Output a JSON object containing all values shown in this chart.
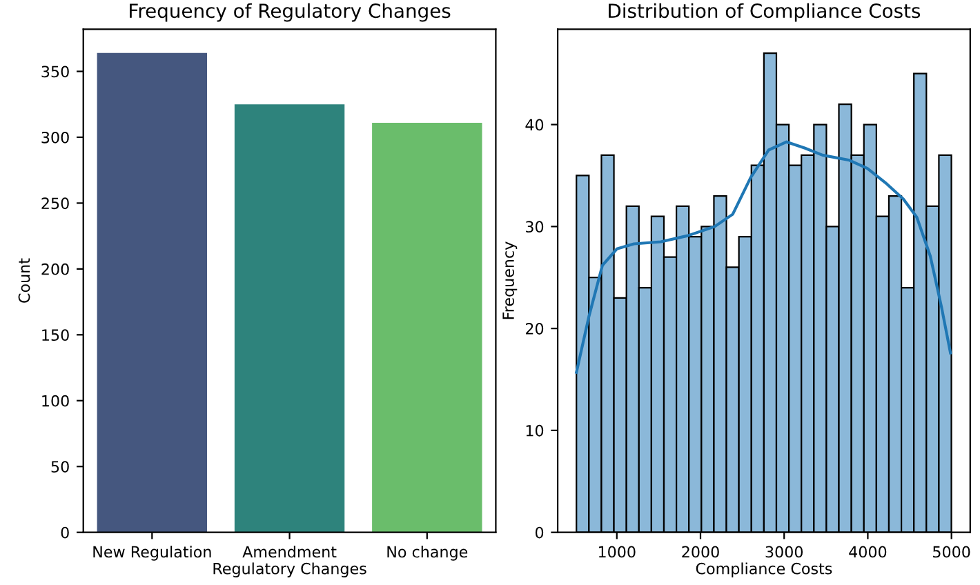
{
  "chart_data": [
    {
      "type": "bar",
      "title": "Frequency of Regulatory Changes",
      "xlabel": "Regulatory Changes",
      "ylabel": "Count",
      "categories": [
        "New Regulation",
        "Amendment",
        "No change"
      ],
      "values": [
        364,
        325,
        311
      ],
      "colors": [
        "#45577f",
        "#2e837c",
        "#6abd6b"
      ],
      "ylim": [
        0,
        382
      ],
      "yticks": [
        0,
        50,
        100,
        150,
        200,
        250,
        300,
        350
      ]
    },
    {
      "type": "histogram",
      "title": "Distribution of Compliance Costs",
      "xlabel": "Compliance Costs",
      "ylabel": "Frequency",
      "bins": [
        517,
        666.4,
        815.8,
        965.2,
        1114.6,
        1264,
        1413.4,
        1562.8,
        1712.2,
        1861.6,
        2011,
        2160.4,
        2309.8,
        2459.2,
        2608.6,
        2758,
        2907.4,
        3056.8,
        3206.2,
        3355.6,
        3505,
        3654.4,
        3803.8,
        3953.2,
        4102.6,
        4252,
        4401.4,
        4550.8,
        4700.2,
        4849.6,
        4999
      ],
      "series": [
        {
          "type": "histogram",
          "color": "#8bb8d9",
          "values": [
            35,
            25,
            37,
            23,
            32,
            24,
            31,
            27,
            32,
            29,
            30,
            33,
            26,
            29,
            36,
            47,
            40,
            36,
            37,
            40,
            30,
            42,
            37,
            40,
            31,
            33,
            24,
            45,
            32,
            37
          ]
        },
        {
          "type": "line",
          "color": "#1f77b4",
          "x": [
            517,
            667,
            828,
            1000,
            1204,
            1526,
            1848,
            2170,
            2385,
            2600,
            2814,
            3029,
            3244,
            3459,
            3781,
            3995,
            4210,
            4425,
            4586,
            4747,
            4881,
            4988
          ],
          "values": [
            15.7,
            21.2,
            26.2,
            27.8,
            28.3,
            28.5,
            29.1,
            30.0,
            31.2,
            34.8,
            37.5,
            38.3,
            37.7,
            37.0,
            36.5,
            35.7,
            34.3,
            32.7,
            30.9,
            27.1,
            22.1,
            17.6
          ]
        }
      ],
      "xlim": [
        293,
        5224
      ],
      "xticks": [
        1000,
        2000,
        3000,
        4000,
        5000
      ],
      "ylim": [
        0,
        49.35
      ],
      "yticks": [
        0,
        10,
        20,
        30,
        40
      ]
    }
  ]
}
